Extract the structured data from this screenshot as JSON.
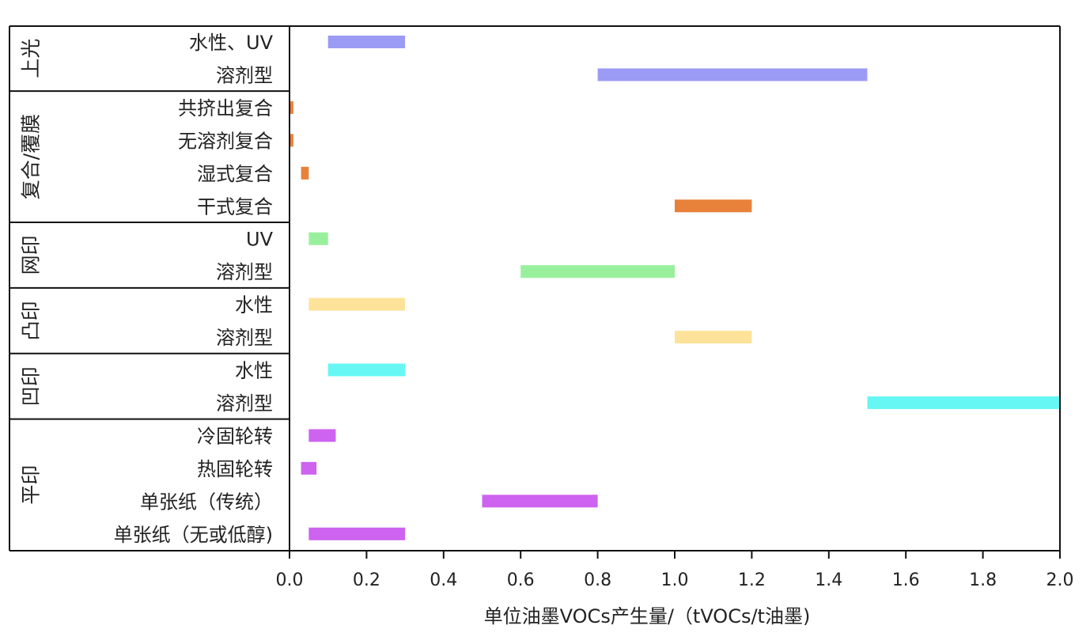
{
  "chart_data": {
    "type": "bar",
    "orientation": "horizontal-range",
    "xlabel": "单位油墨VOCs产生量/（tVOCs/t油墨)",
    "xlim": [
      0.0,
      2.0
    ],
    "xticks": [
      "0.0",
      "0.2",
      "0.4",
      "0.6",
      "0.8",
      "1.0",
      "1.2",
      "1.4",
      "1.6",
      "1.8",
      "2.0"
    ],
    "grid": false,
    "groups": [
      {
        "name": "上光",
        "color": "#9b9bf5",
        "items": [
          {
            "label": "水性、UV",
            "start": 0.1,
            "end": 0.3
          },
          {
            "label": "溶剂型",
            "start": 0.8,
            "end": 1.5
          }
        ]
      },
      {
        "name": "复合/覆膜",
        "color": "#e8813a",
        "items": [
          {
            "label": "共挤出复合",
            "start": 0.0,
            "end": 0.01
          },
          {
            "label": "无溶剂复合",
            "start": 0.0,
            "end": 0.01
          },
          {
            "label": "湿式复合",
            "start": 0.03,
            "end": 0.05
          },
          {
            "label": "干式复合",
            "start": 1.0,
            "end": 1.2
          }
        ]
      },
      {
        "name": "网印",
        "color": "#98f09c",
        "items": [
          {
            "label": "UV",
            "start": 0.05,
            "end": 0.1
          },
          {
            "label": "溶剂型",
            "start": 0.6,
            "end": 1.0
          }
        ]
      },
      {
        "name": "凸印",
        "color": "#fde39a",
        "items": [
          {
            "label": "水性",
            "start": 0.05,
            "end": 0.3
          },
          {
            "label": "溶剂型",
            "start": 1.0,
            "end": 1.2
          }
        ]
      },
      {
        "name": "凹印",
        "color": "#66f7f5",
        "items": [
          {
            "label": "水性",
            "start": 0.1,
            "end": 0.3
          },
          {
            "label": "溶剂型",
            "start": 1.5,
            "end": 2.0
          }
        ]
      },
      {
        "name": "平印",
        "color": "#cd63ef",
        "items": [
          {
            "label": "冷固轮转",
            "start": 0.05,
            "end": 0.12
          },
          {
            "label": "热固轮转",
            "start": 0.03,
            "end": 0.07
          },
          {
            "label": "单张纸（传统）",
            "start": 0.5,
            "end": 0.8
          },
          {
            "label": "单张纸（无或低醇)",
            "start": 0.05,
            "end": 0.3
          }
        ]
      }
    ]
  }
}
